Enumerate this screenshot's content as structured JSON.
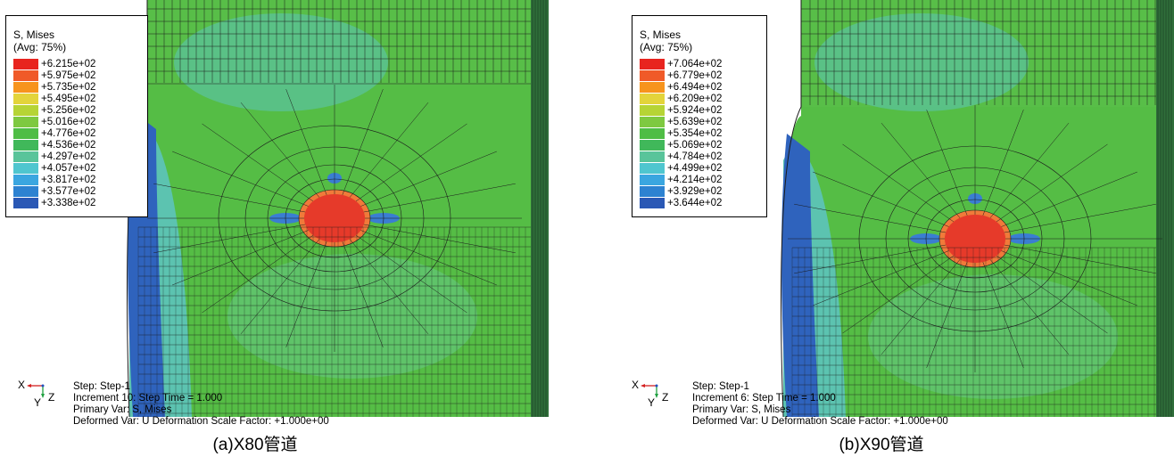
{
  "panels": [
    {
      "legend": {
        "title": "S, Mises",
        "subtitle": "(Avg: 75%)",
        "values": [
          "+6.215e+02",
          "+5.975e+02",
          "+5.735e+02",
          "+5.495e+02",
          "+5.256e+02",
          "+5.016e+02",
          "+4.776e+02",
          "+4.536e+02",
          "+4.297e+02",
          "+4.057e+02",
          "+3.817e+02",
          "+3.577e+02",
          "+3.338e+02"
        ]
      },
      "info": {
        "step": "Step: Step-1",
        "increment": "Increment 10: Step Time = 1.000",
        "primary": "Primary Var: S, Mises",
        "deformed": "Deformed Var: U  Deformation Scale Factor: +1.000e+00"
      },
      "triad": {
        "x": "X",
        "y": "Y",
        "z": "Z"
      },
      "caption": "(a)X80管道"
    },
    {
      "legend": {
        "title": "S, Mises",
        "subtitle": "(Avg: 75%)",
        "values": [
          "+7.064e+02",
          "+6.779e+02",
          "+6.494e+02",
          "+6.209e+02",
          "+5.924e+02",
          "+5.639e+02",
          "+5.354e+02",
          "+5.069e+02",
          "+4.784e+02",
          "+4.499e+02",
          "+4.214e+02",
          "+3.929e+02",
          "+3.644e+02"
        ]
      },
      "info": {
        "step": "Step: Step-1",
        "increment": "Increment 6: Step Time = 1.000",
        "primary": "Primary Var: S, Mises",
        "deformed": "Deformed Var: U  Deformation Scale Factor: +1.000e+00"
      },
      "triad": {
        "x": "X",
        "y": "Y",
        "z": "Z"
      },
      "caption": "(b)X90管道"
    }
  ],
  "colors": {
    "legend": [
      "#e8241f",
      "#f05a28",
      "#f7941d",
      "#e3d43a",
      "#b6d435",
      "#7ec940",
      "#4fbd45",
      "#40b85a",
      "#59c49a",
      "#4fc6cf",
      "#3aa6e0",
      "#2d82d1",
      "#2a58b5"
    ],
    "field_green": "#55bd45",
    "field_cyan": "#5cc3b0",
    "field_blue": "#2f63bd",
    "field_red": "#e63a2a",
    "field_dark": "#2f6e3a",
    "mesh": "#1b1b1b"
  }
}
